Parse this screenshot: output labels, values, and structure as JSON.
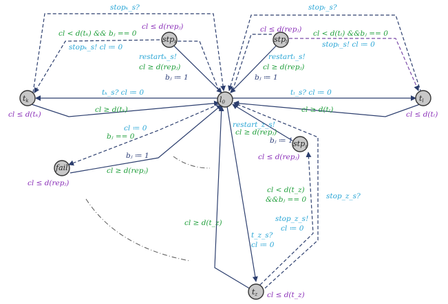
{
  "nodes": {
    "l0": "l",
    "l0_sub": "0",
    "tk": "t",
    "tk_sub": "k",
    "tl": "t",
    "tl_sub": "l",
    "tz": "t",
    "tz_sub": "z",
    "stpk": "stp",
    "stpk_sub": "k",
    "stpl": "stp",
    "stpl_sub": "l",
    "stpz": "stp",
    "stpz_sub": "z",
    "fail": "fail"
  },
  "labels": {
    "stopk_top": "stopₖ_s?",
    "stopl_top": "stopₗ_s?",
    "cl_rep_k": "cl ≤ d(repⱼ)",
    "cl_rep_l": "cl ≤ d(repⱼ)",
    "guard_k": "cl < d(tₖ) && bⱼ == 0",
    "guard_l": "cl < d(tₗ) &&bⱼ == 0",
    "stopk_send": "stopₖ_s!  cl ≔ 0",
    "stopl_send": "stopₗ_s!  cl ≔ 0",
    "restart_k": "restartₖ_s!",
    "restart_k_guard": "cl ≥ d(repⱼ)",
    "restart_k_reset": "bⱼ ≔ 1",
    "restart_l": "restartₗ_s!",
    "restart_l_guard": "cl ≥ d(repⱼ)",
    "restart_l_reset": "bⱼ ≔ 1",
    "tk_sync": "tₖ_s?  cl ≔ 0",
    "tl_sync": "tₗ_s?  cl ≔ 0",
    "tk_return": "cl ≥ d(tₖ)",
    "tl_return": "cl ≥ d(tₗ)",
    "tk_inv": "cl ≤ d(tₖ)",
    "tl_inv": "cl ≤ d(tₗ)",
    "fail_reset": "cl ≔ 0",
    "fail_guard": "bⱼ == 0",
    "fail_b": "bⱼ ≔ 1",
    "fail_return": "cl ≥ d(repⱼ)",
    "fail_inv": "cl ≤ d(repⱼ)",
    "restart_z": "restart_z_s!",
    "restart_z_guard": "cl ≥ d(repⱼ)",
    "restart_z_reset": "bⱼ ≔ 1",
    "stpz_inv": "cl ≤ d(repⱼ)",
    "z_guard1": "cl < d(t_z)",
    "z_guard2": "&&bⱼ == 0",
    "stopz_send": "stop_z_s!",
    "stopz_reset": "cl ≔ 0",
    "stopz_top": "stop_z_s?",
    "tz_return": "cl ≥ d(t_z)",
    "tz_sync": "t_z_s?",
    "tz_reset": "cl ≔ 0",
    "tz_inv": "cl ≤ d(t_z)"
  }
}
